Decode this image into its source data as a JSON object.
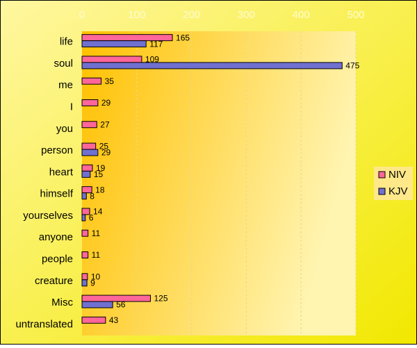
{
  "chart_data": {
    "type": "bar",
    "orientation": "horizontal",
    "categories": [
      "life",
      "soul",
      "me",
      "I",
      "you",
      "person",
      "heart",
      "himself",
      "yourselves",
      "anyone",
      "people",
      "creature",
      "Misc",
      "untranslated"
    ],
    "series": [
      {
        "name": "NIV",
        "color": "#ff6699",
        "values": [
          165,
          109,
          35,
          29,
          27,
          25,
          19,
          18,
          14,
          11,
          11,
          10,
          125,
          43
        ]
      },
      {
        "name": "KJV",
        "color": "#7070d0",
        "values": [
          117,
          475,
          null,
          null,
          null,
          29,
          15,
          8,
          6,
          null,
          null,
          9,
          56,
          null
        ]
      }
    ],
    "xlim": [
      0,
      500
    ],
    "xticks": [
      0,
      100,
      200,
      300,
      400,
      500
    ],
    "grid": true,
    "legend": "right"
  }
}
